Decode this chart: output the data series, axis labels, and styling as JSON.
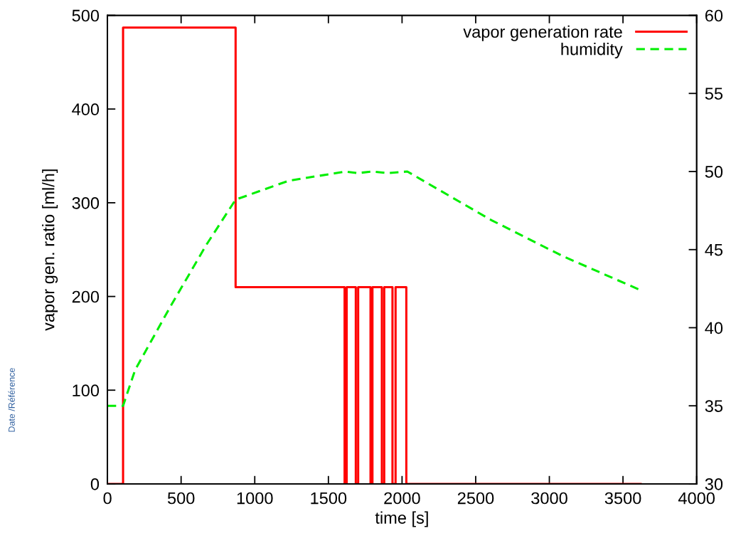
{
  "chart_data": {
    "type": "line",
    "xlabel": "time [s]",
    "ylabel": "vapor gen. ratio [ml/h]",
    "xlim": [
      0,
      4000
    ],
    "xticks": [
      0,
      500,
      1000,
      1500,
      2000,
      2500,
      3000,
      3500,
      4000
    ],
    "ylim": [
      0,
      500
    ],
    "yticks": [
      0,
      100,
      200,
      300,
      400,
      500
    ],
    "y2lim": [
      30,
      60
    ],
    "y2ticks": [
      30,
      35,
      40,
      45,
      50,
      55,
      60
    ],
    "grid": false,
    "legend": "top right",
    "annotations": [
      "Date /Référence"
    ],
    "series": [
      {
        "name": "vapor generation rate",
        "type": "step",
        "color": "#ff0000",
        "line_style": "solid",
        "x": [
          0,
          106,
          870,
          1610,
          1624,
          1686,
          1702,
          1786,
          1799,
          1863,
          1879,
          1935,
          1956,
          2029,
          3620
        ],
        "values": [
          0,
          487,
          210,
          0,
          210,
          0,
          210,
          0,
          210,
          0,
          210,
          0,
          210,
          0,
          0
        ]
      },
      {
        "name": "humidity",
        "axis": "y2",
        "color": "#00ee00",
        "line_style": "dashed",
        "x": [
          0,
          106,
          188,
          430,
          671,
          870,
          1227,
          1614,
          1700,
          1800,
          1900,
          2036,
          2604,
          3087,
          3620
        ],
        "values": [
          35.0,
          35.0,
          37.3,
          41.4,
          45.3,
          48.2,
          49.4,
          50.0,
          49.9,
          50.0,
          49.9,
          50.0,
          46.9,
          44.6,
          42.4
        ]
      }
    ]
  }
}
